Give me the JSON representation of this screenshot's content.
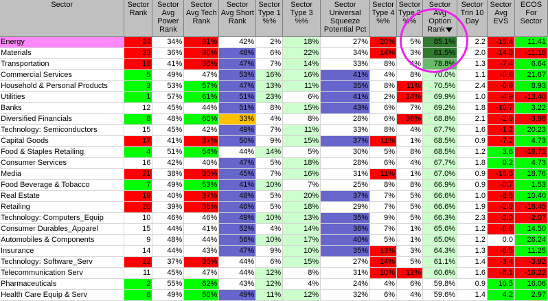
{
  "colors": {
    "red": "#ff0000",
    "green": "#00ff00",
    "light_green": "#ccffcc",
    "blue": "#6666cc",
    "orange": "#ffc000",
    "dark_green": "#2f7a2f",
    "med_green": "#66bb66",
    "pink": "#ff88ff",
    "white": "#ffffff"
  },
  "headers": [
    "Sector",
    "Sector Rank",
    "Sector Avg Power Rank",
    "Sector Avg Tech Rank",
    "Sector Avg Short Rank",
    "Sector Type 1 %%",
    "Sector Type 3 %%",
    "Sector Universal Squeeze Potential Pct",
    "Sector Type 4 %%",
    "Sector Type 2 %%",
    "Sector Avg Option Rank",
    "Sector Trin 10 Day",
    "Sector Avg EVS",
    "ECOS For Sector"
  ],
  "rows": [
    {
      "cells": [
        "Energy",
        "24",
        "34%",
        "31%",
        "42%",
        "2%",
        "18%",
        "27%",
        "20%",
        "5%",
        "85.1%",
        "2.2",
        "-15.4",
        "11.41"
      ],
      "bg": [
        "pink",
        "red",
        "white",
        "red",
        "white",
        "white",
        "light_green",
        "white",
        "red",
        "white",
        "dark_green",
        "white",
        "red",
        "green"
      ]
    },
    {
      "cells": [
        "Materials",
        "23",
        "36%",
        "30%",
        "48%",
        "6%",
        "22%",
        "34%",
        "14%",
        "3%",
        "81.5%",
        "2.0",
        "-14.8",
        "-11.16"
      ],
      "bg": [
        "white",
        "red",
        "white",
        "red",
        "blue",
        "white",
        "light_green",
        "white",
        "red",
        "white",
        "dark_green",
        "white",
        "red",
        "red"
      ]
    },
    {
      "cells": [
        "Transportation",
        "18",
        "41%",
        "38%",
        "47%",
        "7%",
        "14%",
        "33%",
        "8%",
        "4%",
        "78.8%",
        "1.3",
        "-7.4",
        "6.64"
      ],
      "bg": [
        "white",
        "red",
        "white",
        "red",
        "blue",
        "white",
        "light_green",
        "white",
        "white",
        "white",
        "med_green",
        "white",
        "red",
        "green"
      ]
    },
    {
      "cells": [
        "Commercial Services",
        "5",
        "49%",
        "47%",
        "53%",
        "16%",
        "16%",
        "41%",
        "4%",
        "8%",
        "70.0%",
        "1.1",
        "-0.6",
        "21.67"
      ],
      "bg": [
        "white",
        "green",
        "white",
        "white",
        "blue",
        "light_green",
        "light_green",
        "blue",
        "white",
        "white",
        "light_green",
        "white",
        "red",
        "green"
      ]
    },
    {
      "cells": [
        "Household & Personal Products",
        "3",
        "53%",
        "57%",
        "47%",
        "13%",
        "11%",
        "35%",
        "8%",
        "11%",
        "70.5%",
        "2.4",
        "-0.9",
        "8.93"
      ],
      "bg": [
        "white",
        "green",
        "white",
        "green",
        "blue",
        "light_green",
        "light_green",
        "blue",
        "white",
        "red",
        "light_green",
        "white",
        "red",
        "green"
      ]
    },
    {
      "cells": [
        "Utilities",
        "1",
        "57%",
        "61%",
        "51%",
        "23%",
        "6%",
        "41%",
        "2%",
        "14%",
        "69.9%",
        "1.0",
        "-4.9",
        "-13.40"
      ],
      "bg": [
        "white",
        "green",
        "white",
        "green",
        "blue",
        "light_green",
        "white",
        "blue",
        "white",
        "red",
        "light_green",
        "white",
        "red",
        "red"
      ]
    },
    {
      "cells": [
        "Banks",
        "12",
        "45%",
        "44%",
        "51%",
        "8%",
        "15%",
        "43%",
        "6%",
        "7%",
        "69.2%",
        "1.8",
        "-10.7",
        "3.22"
      ],
      "bg": [
        "white",
        "white",
        "white",
        "white",
        "blue",
        "white",
        "light_green",
        "blue",
        "white",
        "white",
        "light_green",
        "white",
        "red",
        "green"
      ]
    },
    {
      "cells": [
        "Diversified Financials",
        "8",
        "48%",
        "60%",
        "33%",
        "4%",
        "8%",
        "28%",
        "6%",
        "38%",
        "68.8%",
        "2.1",
        "-2.9",
        "-3.98"
      ],
      "bg": [
        "white",
        "green",
        "white",
        "green",
        "orange",
        "white",
        "white",
        "white",
        "white",
        "red",
        "light_green",
        "white",
        "red",
        "red"
      ]
    },
    {
      "cells": [
        "Technology: Semiconductors",
        "15",
        "45%",
        "42%",
        "49%",
        "7%",
        "11%",
        "33%",
        "8%",
        "4%",
        "67.7%",
        "1.6",
        "-1.2",
        "20.23"
      ],
      "bg": [
        "white",
        "white",
        "white",
        "white",
        "blue",
        "white",
        "light_green",
        "white",
        "white",
        "white",
        "light_green",
        "white",
        "red",
        "green"
      ]
    },
    {
      "cells": [
        "Capital Goods",
        "17",
        "41%",
        "37%",
        "50%",
        "9%",
        "15%",
        "37%",
        "11%",
        "1%",
        "68.5%",
        "0.9",
        "-7.2",
        "4.73"
      ],
      "bg": [
        "white",
        "red",
        "white",
        "red",
        "blue",
        "white",
        "light_green",
        "blue",
        "red",
        "white",
        "light_green",
        "white",
        "red",
        "green"
      ]
    },
    {
      "cells": [
        "Food & Staples Retailing",
        "4",
        "51%",
        "54%",
        "44%",
        "14%",
        "5%",
        "30%",
        "5%",
        "8%",
        "68.5%",
        "1.2",
        "3.6",
        "-16.71"
      ],
      "bg": [
        "white",
        "green",
        "white",
        "green",
        "white",
        "light_green",
        "white",
        "white",
        "white",
        "white",
        "light_green",
        "white",
        "green",
        "red"
      ]
    },
    {
      "cells": [
        "Consumer Services",
        "16",
        "42%",
        "40%",
        "47%",
        "5%",
        "18%",
        "28%",
        "6%",
        "4%",
        "67.7%",
        "1.8",
        "0.2",
        "4.73"
      ],
      "bg": [
        "white",
        "white",
        "white",
        "white",
        "blue",
        "white",
        "light_green",
        "white",
        "white",
        "white",
        "light_green",
        "white",
        "green",
        "green"
      ]
    },
    {
      "cells": [
        "Media",
        "21",
        "38%",
        "35%",
        "45%",
        "7%",
        "16%",
        "31%",
        "11%",
        "1%",
        "67.0%",
        "0.9",
        "-16.6",
        "18.76"
      ],
      "bg": [
        "white",
        "red",
        "white",
        "red",
        "blue",
        "white",
        "light_green",
        "white",
        "red",
        "white",
        "light_green",
        "white",
        "red",
        "green"
      ]
    },
    {
      "cells": [
        "Food Beverage & Tobacco",
        "7",
        "49%",
        "53%",
        "41%",
        "10%",
        "7%",
        "25%",
        "8%",
        "8%",
        "66.9%",
        "0.9",
        "-0.7",
        "1.53"
      ],
      "bg": [
        "white",
        "green",
        "white",
        "green",
        "blue",
        "light_green",
        "white",
        "white",
        "white",
        "white",
        "light_green",
        "white",
        "red",
        "green"
      ]
    },
    {
      "cells": [
        "Real Estate",
        "19",
        "40%",
        "37%",
        "48%",
        "5%",
        "20%",
        "37%",
        "7%",
        "5%",
        "66.6%",
        "1.0",
        "-6.5",
        "10.40"
      ],
      "bg": [
        "white",
        "red",
        "white",
        "red",
        "blue",
        "white",
        "light_green",
        "blue",
        "white",
        "white",
        "light_green",
        "white",
        "red",
        "green"
      ]
    },
    {
      "cells": [
        "Retailing",
        "20",
        "39%",
        "36%",
        "46%",
        "5%",
        "18%",
        "29%",
        "7%",
        "5%",
        "66.6%",
        "1.9",
        "-2.9",
        "-18.45"
      ],
      "bg": [
        "white",
        "red",
        "white",
        "red",
        "blue",
        "white",
        "light_green",
        "white",
        "white",
        "white",
        "light_green",
        "white",
        "red",
        "red"
      ]
    },
    {
      "cells": [
        "Technology: Computers_Equip",
        "10",
        "46%",
        "46%",
        "49%",
        "10%",
        "13%",
        "35%",
        "9%",
        "5%",
        "66.3%",
        "2.3",
        "-2.0",
        "-2.07"
      ],
      "bg": [
        "white",
        "white",
        "white",
        "white",
        "blue",
        "light_green",
        "light_green",
        "blue",
        "white",
        "white",
        "light_green",
        "white",
        "red",
        "red"
      ]
    },
    {
      "cells": [
        "Consumer Durables_Apparel",
        "15",
        "44%",
        "41%",
        "52%",
        "4%",
        "14%",
        "36%",
        "7%",
        "1%",
        "65.6%",
        "1.2",
        "-0.8",
        "14.50"
      ],
      "bg": [
        "white",
        "white",
        "white",
        "white",
        "blue",
        "white",
        "light_green",
        "blue",
        "white",
        "white",
        "light_green",
        "white",
        "red",
        "green"
      ]
    },
    {
      "cells": [
        "Automobiles & Components",
        "9",
        "48%",
        "44%",
        "56%",
        "10%",
        "17%",
        "40%",
        "5%",
        "1%",
        "65.0%",
        "1.2",
        "0.0",
        "26.24"
      ],
      "bg": [
        "white",
        "white",
        "white",
        "white",
        "blue",
        "light_green",
        "light_green",
        "blue",
        "white",
        "white",
        "light_green",
        "white",
        "white",
        "green"
      ]
    },
    {
      "cells": [
        "Insurance",
        "14",
        "44%",
        "43%",
        "47%",
        "9%",
        "10%",
        "35%",
        "13%",
        "3%",
        "64.3%",
        "1.3",
        "-6.5",
        "11.25"
      ],
      "bg": [
        "white",
        "white",
        "white",
        "white",
        "blue",
        "white",
        "light_green",
        "blue",
        "red",
        "white",
        "light_green",
        "white",
        "red",
        "green"
      ]
    },
    {
      "cells": [
        "Technology: Software_Serv",
        "22",
        "37%",
        "35%",
        "44%",
        "6%",
        "15%",
        "27%",
        "14%",
        "5%",
        "61.1%",
        "1.4",
        "-3.4",
        "-3.92"
      ],
      "bg": [
        "white",
        "red",
        "white",
        "red",
        "white",
        "white",
        "light_green",
        "white",
        "red",
        "white",
        "light_green",
        "white",
        "red",
        "red"
      ]
    },
    {
      "cells": [
        "Telecommunication Serv",
        "11",
        "45%",
        "47%",
        "44%",
        "12%",
        "8%",
        "31%",
        "10%",
        "12%",
        "60.6%",
        "1.6",
        "-6.1",
        "-16.22"
      ],
      "bg": [
        "white",
        "white",
        "white",
        "white",
        "white",
        "light_green",
        "white",
        "white",
        "red",
        "red",
        "light_green",
        "white",
        "red",
        "red"
      ]
    },
    {
      "cells": [
        "Pharmaceuticals",
        "2",
        "55%",
        "62%",
        "43%",
        "12%",
        "4%",
        "24%",
        "4%",
        "6%",
        "59.8%",
        "0.9",
        "10.5",
        "16.06"
      ],
      "bg": [
        "white",
        "green",
        "white",
        "green",
        "white",
        "light_green",
        "white",
        "white",
        "white",
        "white",
        "white",
        "white",
        "green",
        "green"
      ]
    },
    {
      "cells": [
        "Health Care Equip & Serv",
        "6",
        "49%",
        "50%",
        "49%",
        "11%",
        "12%",
        "32%",
        "6%",
        "4%",
        "59.6%",
        "1.4",
        "4.2",
        "2.97"
      ],
      "bg": [
        "white",
        "green",
        "white",
        "green",
        "blue",
        "light_green",
        "light_green",
        "white",
        "white",
        "white",
        "white",
        "white",
        "green",
        "green"
      ]
    }
  ]
}
